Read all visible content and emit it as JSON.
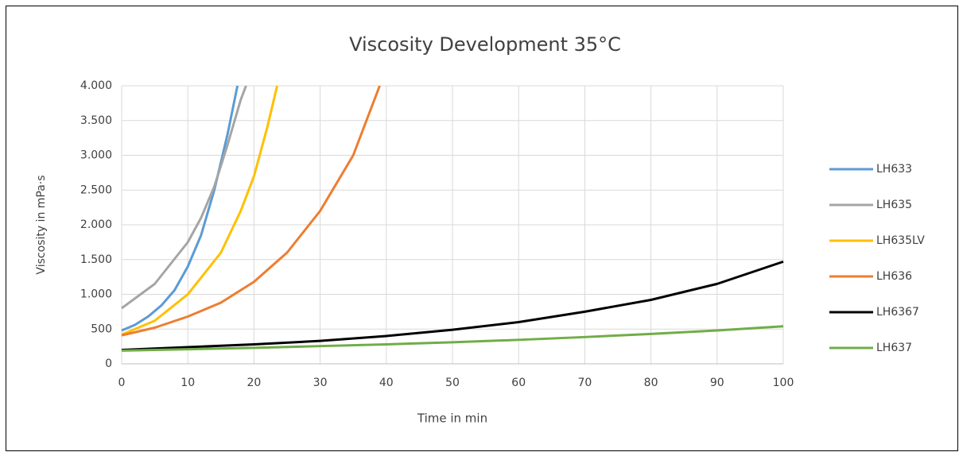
{
  "chart_data": {
    "type": "line",
    "title": "Viscosity Development 35°C",
    "x_label": "Time in min",
    "y_label": "Viscosity in mPa·s",
    "xlim": [
      0,
      100
    ],
    "xticks": [
      0,
      10,
      20,
      30,
      40,
      50,
      60,
      70,
      80,
      90,
      100
    ],
    "ylim": [
      0,
      4000
    ],
    "yticks": [
      0,
      500,
      {
        "value": 1000,
        "label": "1.000"
      },
      {
        "value": 1500,
        "label": "1.500"
      },
      {
        "value": 2000,
        "label": "2.000"
      },
      {
        "value": 2500,
        "label": "2.500"
      },
      {
        "value": 3000,
        "label": "3.000"
      },
      {
        "value": 3500,
        "label": "3.500"
      },
      {
        "value": 4000,
        "label": "4.000"
      }
    ],
    "grid": true,
    "legend": "right",
    "series": [
      {
        "name": "LH633",
        "color": "#5b9bd5",
        "x": [
          0,
          2,
          4,
          6,
          8,
          10,
          12,
          14,
          16,
          17.5
        ],
        "values": [
          480,
          560,
          680,
          840,
          1060,
          1400,
          1850,
          2500,
          3300,
          4000
        ]
      },
      {
        "name": "LH635",
        "color": "#a5a5a5",
        "x": [
          0,
          5,
          10,
          12,
          14,
          16,
          18,
          18.8
        ],
        "values": [
          800,
          1150,
          1750,
          2100,
          2550,
          3150,
          3800,
          4000
        ]
      },
      {
        "name": "LH635LV",
        "color": "#ffc000",
        "x": [
          0,
          5,
          10,
          15,
          18,
          20,
          22,
          23.5
        ],
        "values": [
          420,
          620,
          1000,
          1600,
          2200,
          2700,
          3400,
          4000
        ]
      },
      {
        "name": "LH636",
        "color": "#ed7d31",
        "x": [
          0,
          5,
          10,
          15,
          20,
          25,
          30,
          35,
          39
        ],
        "values": [
          410,
          520,
          680,
          880,
          1180,
          1600,
          2200,
          3000,
          4000
        ]
      },
      {
        "name": "LH6367",
        "color": "#000000",
        "x": [
          0,
          10,
          20,
          30,
          40,
          50,
          60,
          70,
          80,
          90,
          100
        ],
        "values": [
          200,
          240,
          280,
          330,
          400,
          490,
          600,
          750,
          920,
          1150,
          1470
        ]
      },
      {
        "name": "LH637",
        "color": "#70ad47",
        "x": [
          0,
          10,
          20,
          30,
          40,
          50,
          60,
          70,
          80,
          90,
          100
        ],
        "values": [
          190,
          210,
          230,
          255,
          280,
          310,
          345,
          385,
          430,
          480,
          540
        ]
      }
    ]
  }
}
